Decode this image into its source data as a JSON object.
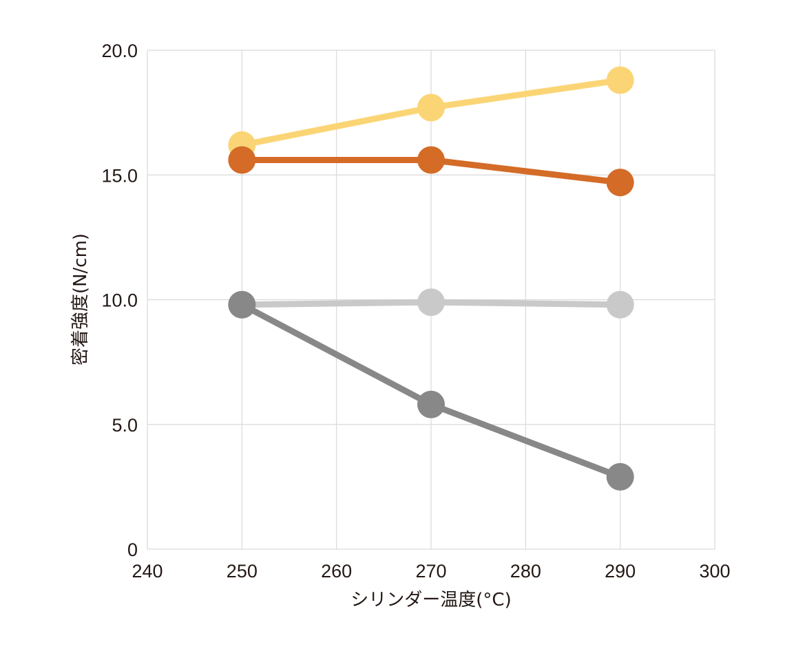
{
  "chart_data": {
    "type": "line",
    "title": "",
    "xlabel": "シリンダー温度(°C)",
    "ylabel": "密着強度(N/cm)",
    "xlim": [
      240,
      300
    ],
    "ylim": [
      0,
      20
    ],
    "x_ticks": [
      240,
      250,
      260,
      270,
      280,
      290,
      300
    ],
    "y_ticks": [
      0,
      5,
      10,
      15,
      20
    ],
    "x_tick_labels": [
      "240",
      "250",
      "260",
      "270",
      "280",
      "290",
      "300"
    ],
    "y_tick_labels": [
      "0",
      "5.0",
      "10.0",
      "15.0",
      "20.0"
    ],
    "grid": true,
    "legend": "none",
    "x": [
      250,
      270,
      290
    ],
    "series": [
      {
        "values": [
          16.2,
          17.7,
          18.8
        ],
        "color": "#fbd575"
      },
      {
        "values": [
          15.6,
          15.6,
          14.7
        ],
        "color": "#d46b27"
      },
      {
        "values": [
          9.8,
          9.9,
          9.8
        ],
        "color": "#c9c9c9"
      },
      {
        "values": [
          9.8,
          5.8,
          2.9
        ],
        "color": "#888888"
      }
    ]
  }
}
